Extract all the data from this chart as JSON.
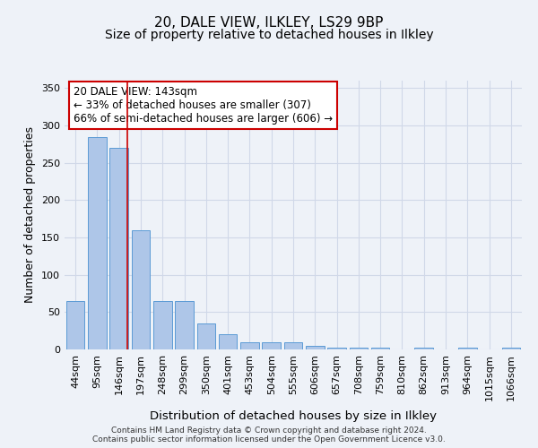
{
  "title": "20, DALE VIEW, ILKLEY, LS29 9BP",
  "subtitle": "Size of property relative to detached houses in Ilkley",
  "xlabel": "Distribution of detached houses by size in Ilkley",
  "ylabel": "Number of detached properties",
  "categories": [
    "44sqm",
    "95sqm",
    "146sqm",
    "197sqm",
    "248sqm",
    "299sqm",
    "350sqm",
    "401sqm",
    "453sqm",
    "504sqm",
    "555sqm",
    "606sqm",
    "657sqm",
    "708sqm",
    "759sqm",
    "810sqm",
    "862sqm",
    "913sqm",
    "964sqm",
    "1015sqm",
    "1066sqm"
  ],
  "values": [
    65,
    285,
    270,
    160,
    65,
    65,
    35,
    20,
    10,
    10,
    10,
    5,
    3,
    2,
    2,
    0,
    2,
    0,
    2,
    0,
    2
  ],
  "bar_color": "#aec6e8",
  "bar_edge_color": "#5b9bd5",
  "bar_edge_width": 0.7,
  "grid_color": "#d0d8e8",
  "bg_color": "#eef2f8",
  "axes_bg_color": "#eef2f8",
  "red_line_x": 2,
  "annotation_text": "20 DALE VIEW: 143sqm\n← 33% of detached houses are smaller (307)\n66% of semi-detached houses are larger (606) →",
  "annotation_box_color": "#ffffff",
  "annotation_box_edge_color": "#cc0000",
  "annotation_fontsize": 8.5,
  "title_fontsize": 11,
  "subtitle_fontsize": 10,
  "xlabel_fontsize": 9.5,
  "ylabel_fontsize": 9,
  "tick_fontsize": 8,
  "ylim": [
    0,
    360
  ],
  "yticks": [
    0,
    50,
    100,
    150,
    200,
    250,
    300,
    350
  ],
  "footer_line1": "Contains HM Land Registry data © Crown copyright and database right 2024.",
  "footer_line2": "Contains public sector information licensed under the Open Government Licence v3.0."
}
